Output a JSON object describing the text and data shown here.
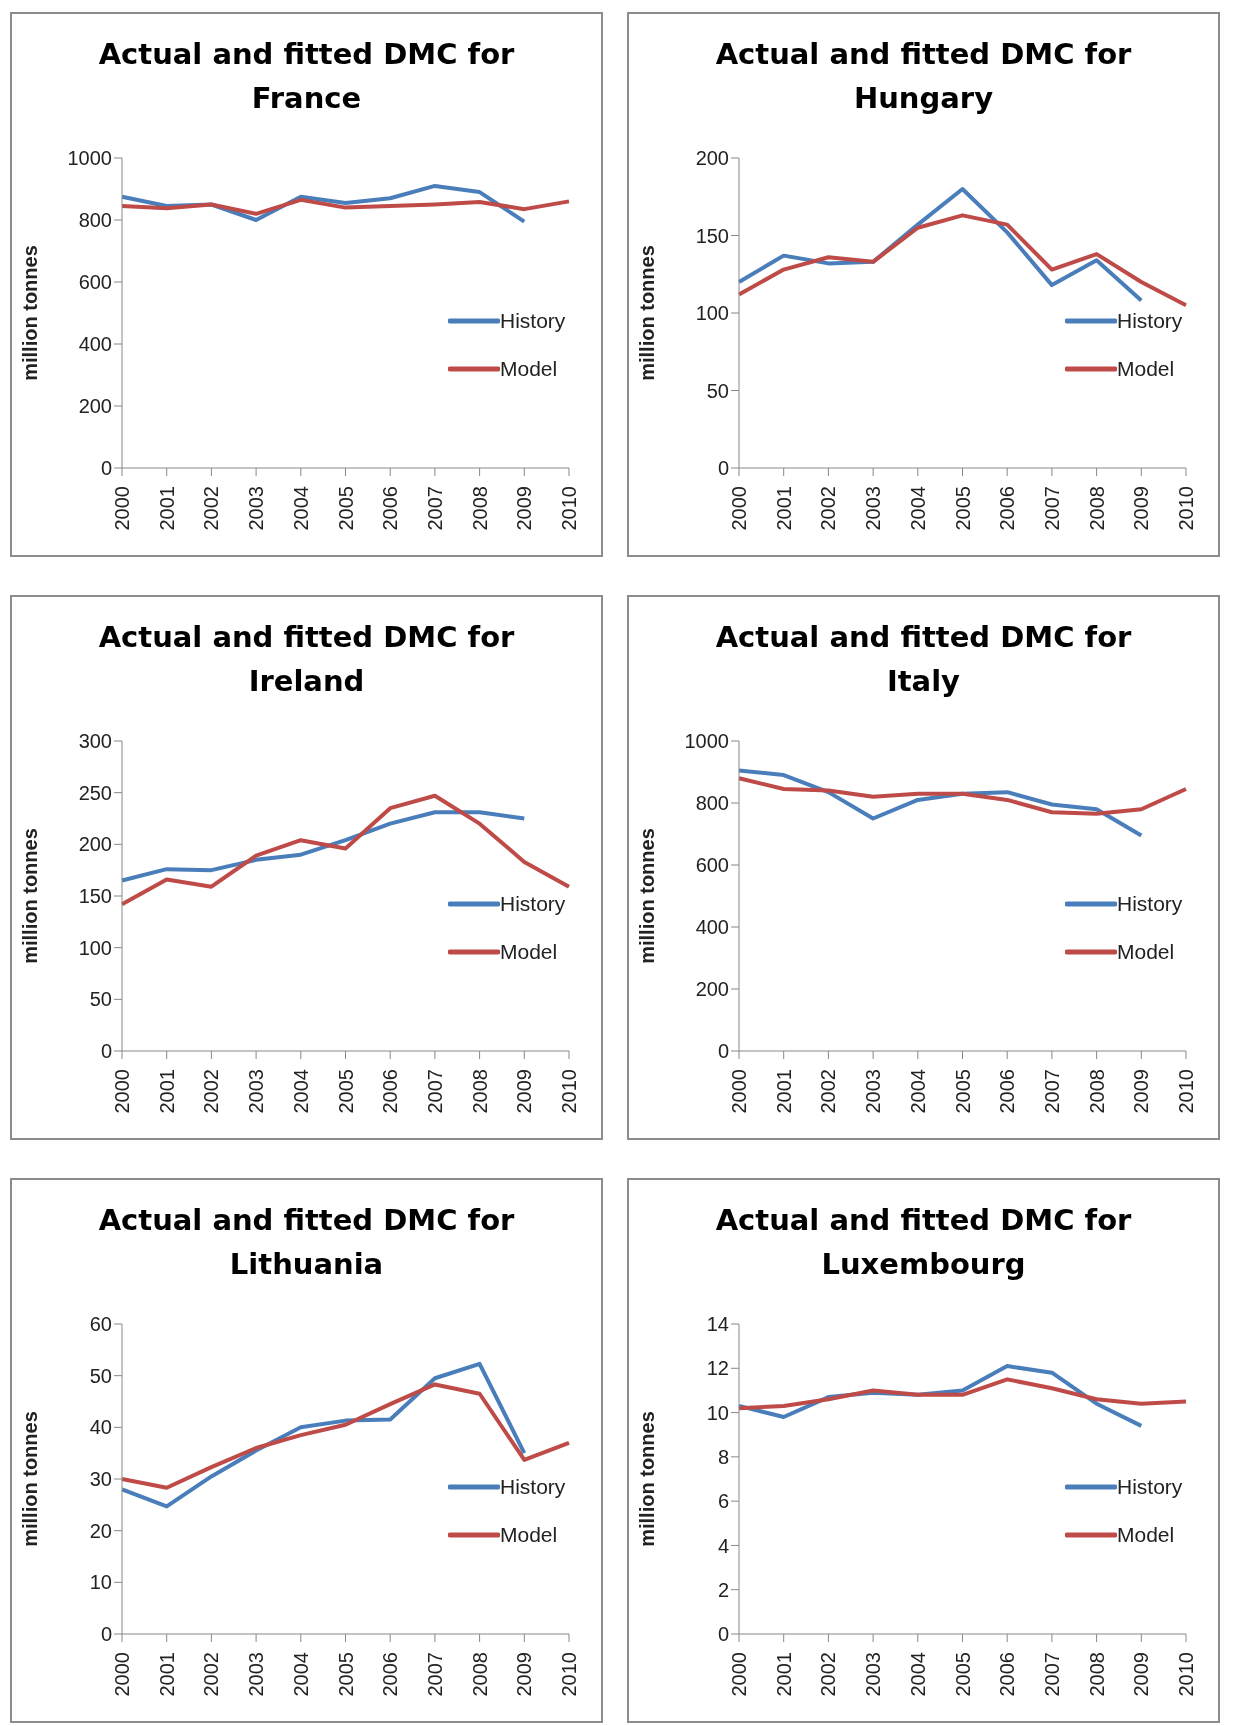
{
  "chart_data": [
    {
      "type": "line",
      "title": "Actual and fitted DMC for France",
      "ylabel": "million tonnes",
      "categories": [
        "2000",
        "2001",
        "2002",
        "2003",
        "2004",
        "2005",
        "2006",
        "2007",
        "2008",
        "2009",
        "2010"
      ],
      "ylim": [
        0,
        1000
      ],
      "yticks": [
        0,
        200,
        400,
        600,
        800,
        1000
      ],
      "legend": "right",
      "series": [
        {
          "name": "History",
          "color": "#4a7ebb",
          "values": [
            875,
            845,
            850,
            800,
            875,
            855,
            870,
            910,
            890,
            795,
            null
          ]
        },
        {
          "name": "Model",
          "color": "#be4b48",
          "values": [
            845,
            838,
            850,
            820,
            865,
            840,
            845,
            850,
            858,
            835,
            860
          ]
        }
      ]
    },
    {
      "type": "line",
      "title": "Actual and fitted DMC for Hungary",
      "ylabel": "million tonnes",
      "categories": [
        "2000",
        "2001",
        "2002",
        "2003",
        "2004",
        "2005",
        "2006",
        "2007",
        "2008",
        "2009",
        "2010"
      ],
      "ylim": [
        0,
        200
      ],
      "yticks": [
        0,
        50,
        100,
        150,
        200
      ],
      "legend": "right",
      "series": [
        {
          "name": "History",
          "color": "#4a7ebb",
          "values": [
            120,
            137,
            132,
            133,
            157,
            180,
            152,
            118,
            134,
            108,
            null
          ]
        },
        {
          "name": "Model",
          "color": "#be4b48",
          "values": [
            112,
            128,
            136,
            133,
            155,
            163,
            157,
            128,
            138,
            120,
            105
          ]
        }
      ]
    },
    {
      "type": "line",
      "title": "Actual and fitted DMC for Ireland",
      "ylabel": "million tonnes",
      "categories": [
        "2000",
        "2001",
        "2002",
        "2003",
        "2004",
        "2005",
        "2006",
        "2007",
        "2008",
        "2009",
        "2010"
      ],
      "ylim": [
        0,
        300
      ],
      "yticks": [
        0,
        50,
        100,
        150,
        200,
        250,
        300
      ],
      "legend": "right",
      "series": [
        {
          "name": "History",
          "color": "#4a7ebb",
          "values": [
            165,
            176,
            175,
            185,
            190,
            204,
            220,
            231,
            231,
            225,
            null
          ]
        },
        {
          "name": "Model",
          "color": "#be4b48",
          "values": [
            142,
            166,
            159,
            189,
            204,
            196,
            235,
            247,
            220,
            183,
            159
          ]
        }
      ]
    },
    {
      "type": "line",
      "title": "Actual and fitted DMC for Italy",
      "ylabel": "million tonnes",
      "categories": [
        "2000",
        "2001",
        "2002",
        "2003",
        "2004",
        "2005",
        "2006",
        "2007",
        "2008",
        "2009",
        "2010"
      ],
      "ylim": [
        0,
        1000
      ],
      "yticks": [
        0,
        200,
        400,
        600,
        800,
        1000
      ],
      "legend": "right",
      "series": [
        {
          "name": "History",
          "color": "#4a7ebb",
          "values": [
            905,
            890,
            835,
            750,
            810,
            830,
            835,
            795,
            780,
            695,
            null
          ]
        },
        {
          "name": "Model",
          "color": "#be4b48",
          "values": [
            880,
            845,
            840,
            820,
            830,
            830,
            810,
            770,
            765,
            780,
            845
          ]
        }
      ]
    },
    {
      "type": "line",
      "title": "Actual and fitted DMC for Lithuania",
      "ylabel": "million tonnes",
      "categories": [
        "2000",
        "2001",
        "2002",
        "2003",
        "2004",
        "2005",
        "2006",
        "2007",
        "2008",
        "2009",
        "2010"
      ],
      "ylim": [
        0,
        60
      ],
      "yticks": [
        0,
        10,
        20,
        30,
        40,
        50,
        60
      ],
      "legend": "right",
      "series": [
        {
          "name": "History",
          "color": "#4a7ebb",
          "values": [
            28,
            24.7,
            30.5,
            35.5,
            40,
            41.3,
            41.5,
            49.5,
            52.3,
            35,
            null
          ]
        },
        {
          "name": "Model",
          "color": "#be4b48",
          "values": [
            30,
            28.3,
            32.3,
            36,
            38.5,
            40.5,
            44.5,
            48.3,
            46.5,
            33.7,
            37
          ]
        }
      ]
    },
    {
      "type": "line",
      "title": "Actual and fitted DMC for Luxembourg",
      "ylabel": "million tonnes",
      "categories": [
        "2000",
        "2001",
        "2002",
        "2003",
        "2004",
        "2005",
        "2006",
        "2007",
        "2008",
        "2009",
        "2010"
      ],
      "ylim": [
        0,
        14
      ],
      "yticks": [
        0,
        2,
        4,
        6,
        8,
        10,
        12,
        14
      ],
      "legend": "right",
      "series": [
        {
          "name": "History",
          "color": "#4a7ebb",
          "values": [
            10.3,
            9.8,
            10.7,
            10.9,
            10.8,
            11,
            12.1,
            11.8,
            10.4,
            9.4,
            null
          ]
        },
        {
          "name": "Model",
          "color": "#be4b48",
          "values": [
            10.2,
            10.3,
            10.6,
            11,
            10.8,
            10.8,
            11.5,
            11.1,
            10.6,
            10.4,
            10.5
          ]
        }
      ]
    }
  ]
}
